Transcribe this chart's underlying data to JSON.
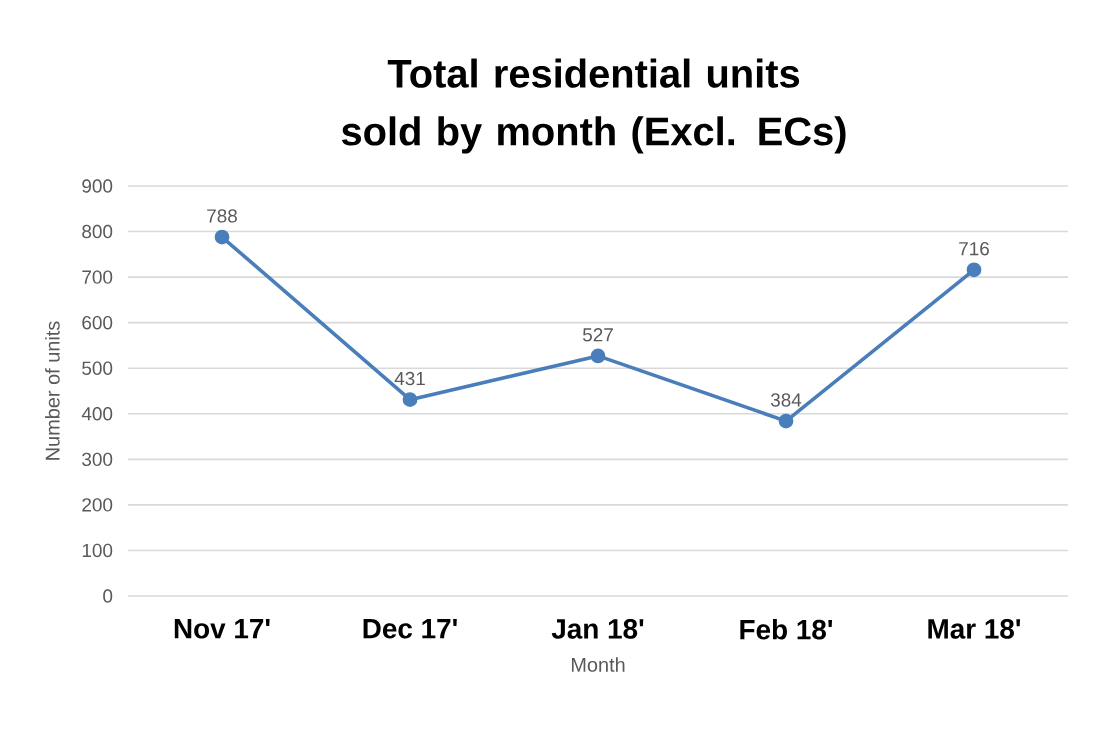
{
  "chart_data": {
    "type": "line",
    "title": "Total residential units sold by month (Excl. ECs)",
    "xlabel": "Month",
    "ylabel": "Number of units",
    "categories": [
      "Nov 17'",
      "Dec 17'",
      "Jan 18'",
      "Feb 18'",
      "Mar 18'"
    ],
    "values": [
      788,
      431,
      527,
      384,
      716
    ],
    "color": "#4a7ebb",
    "ylim": [
      0,
      900
    ],
    "yticks": [
      0,
      100,
      200,
      300,
      400,
      500,
      600,
      700,
      800,
      900
    ],
    "grid": "y",
    "marker": "circle",
    "line_style": "solid",
    "data_labels": true
  }
}
